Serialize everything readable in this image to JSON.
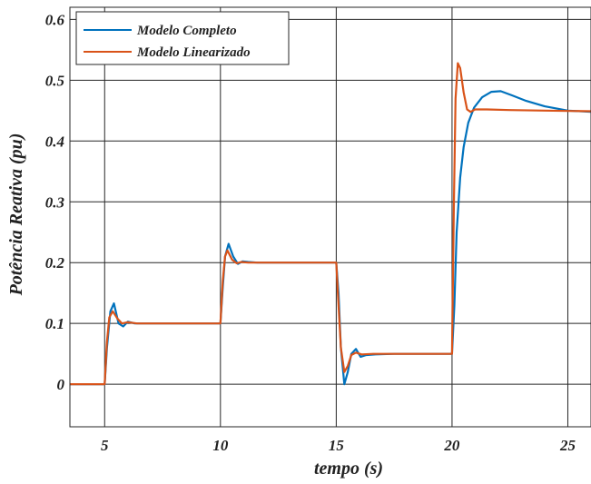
{
  "chart_data": {
    "type": "line",
    "title": "",
    "xlabel": "tempo (s)",
    "ylabel": "Potência Reativa (pu)",
    "xlim": [
      3.5,
      26
    ],
    "ylim": [
      -0.07,
      0.62
    ],
    "xticks": [
      5,
      10,
      15,
      20,
      25
    ],
    "xtick_labels": [
      "5",
      "10",
      "15",
      "20",
      "25"
    ],
    "yticks": [
      0,
      0.1,
      0.2,
      0.3,
      0.4,
      0.5,
      0.6
    ],
    "ytick_labels": [
      "0",
      "0.1",
      "0.2",
      "0.3",
      "0.4",
      "0.5",
      "0.6"
    ],
    "grid": true,
    "legend_position": "top-left",
    "series": [
      {
        "name": "Modelo Completo",
        "color": "#0072BD",
        "x": [
          3.5,
          5.0,
          5.1,
          5.25,
          5.4,
          5.6,
          5.8,
          6.0,
          6.3,
          7.0,
          10.0,
          10.1,
          10.2,
          10.35,
          10.55,
          10.75,
          10.95,
          11.2,
          11.6,
          12.5,
          15.0,
          15.1,
          15.2,
          15.35,
          15.5,
          15.65,
          15.85,
          16.05,
          16.3,
          16.7,
          17.5,
          20.0,
          20.1,
          20.2,
          20.35,
          20.5,
          20.7,
          20.95,
          21.3,
          21.7,
          22.1,
          22.6,
          23.2,
          24.0,
          25.0,
          26.0
        ],
        "y": [
          0.0,
          0.0,
          0.06,
          0.12,
          0.133,
          0.1,
          0.095,
          0.103,
          0.1,
          0.1,
          0.1,
          0.16,
          0.21,
          0.231,
          0.21,
          0.198,
          0.202,
          0.201,
          0.2,
          0.2,
          0.2,
          0.15,
          0.06,
          0.0,
          0.02,
          0.05,
          0.058,
          0.045,
          0.048,
          0.049,
          0.05,
          0.05,
          0.13,
          0.25,
          0.34,
          0.39,
          0.43,
          0.455,
          0.472,
          0.481,
          0.482,
          0.475,
          0.466,
          0.457,
          0.45,
          0.448
        ]
      },
      {
        "name": "Modelo Linearizado",
        "color": "#D95319",
        "x": [
          3.5,
          5.0,
          5.1,
          5.2,
          5.35,
          5.55,
          5.75,
          6.0,
          6.4,
          7.0,
          10.0,
          10.1,
          10.2,
          10.3,
          10.5,
          10.7,
          10.9,
          11.2,
          11.6,
          12.5,
          15.0,
          15.1,
          15.2,
          15.35,
          15.5,
          15.65,
          15.85,
          16.1,
          16.6,
          17.5,
          20.0,
          20.08,
          20.15,
          20.25,
          20.35,
          20.5,
          20.65,
          20.8,
          21.0,
          21.5,
          22.5,
          24.0,
          26.0
        ],
        "y": [
          0.0,
          0.0,
          0.07,
          0.11,
          0.12,
          0.108,
          0.1,
          0.102,
          0.1,
          0.1,
          0.1,
          0.17,
          0.21,
          0.22,
          0.205,
          0.199,
          0.201,
          0.2,
          0.2,
          0.2,
          0.2,
          0.13,
          0.06,
          0.02,
          0.03,
          0.048,
          0.052,
          0.049,
          0.05,
          0.05,
          0.05,
          0.3,
          0.47,
          0.528,
          0.52,
          0.48,
          0.452,
          0.448,
          0.452,
          0.452,
          0.451,
          0.45,
          0.449
        ]
      }
    ]
  }
}
